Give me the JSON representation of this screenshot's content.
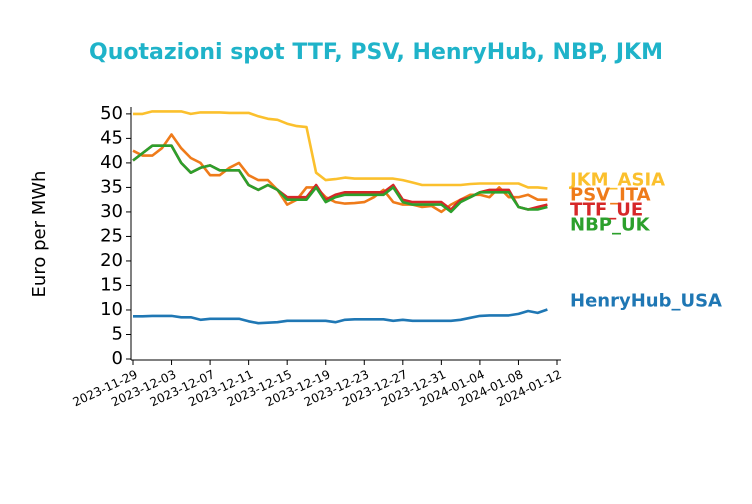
{
  "chart_data": {
    "type": "line",
    "title": "Quotazioni spot TTF, PSV, HenryHub, NBP, JKM",
    "y_label": "Euro per MWh",
    "x": [
      "2023-11-29",
      "2023-11-30",
      "2023-12-01",
      "2023-12-02",
      "2023-12-03",
      "2023-12-04",
      "2023-12-05",
      "2023-12-06",
      "2023-12-07",
      "2023-12-08",
      "2023-12-09",
      "2023-12-10",
      "2023-12-11",
      "2023-12-12",
      "2023-12-13",
      "2023-12-14",
      "2023-12-15",
      "2023-12-16",
      "2023-12-17",
      "2023-12-18",
      "2023-12-19",
      "2023-12-20",
      "2023-12-21",
      "2023-12-22",
      "2023-12-23",
      "2023-12-24",
      "2023-12-25",
      "2023-12-26",
      "2023-12-27",
      "2023-12-28",
      "2023-12-29",
      "2023-12-30",
      "2023-12-31",
      "2024-01-01",
      "2024-01-02",
      "2024-01-03",
      "2024-01-04",
      "2024-01-05",
      "2024-01-06",
      "2024-01-07",
      "2024-01-08",
      "2024-01-09",
      "2024-01-10",
      "2024-01-11"
    ],
    "xlim": [
      "2023-11-29",
      "2024-01-12"
    ],
    "xticks": [
      "2023-11-29",
      "2023-12-03",
      "2023-12-07",
      "2023-12-11",
      "2023-12-15",
      "2023-12-19",
      "2023-12-23",
      "2023-12-27",
      "2023-12-31",
      "2024-01-04",
      "2024-01-08",
      "2024-01-12"
    ],
    "ylim": [
      0,
      51.2
    ],
    "yticks": [
      0,
      5,
      10,
      15,
      20,
      25,
      30,
      35,
      40,
      45,
      50
    ],
    "series": [
      {
        "name": "JKM_ASIA",
        "color": "#fbc02d",
        "values": [
          50,
          50,
          50.5,
          50.5,
          50.5,
          50.5,
          50,
          50.3,
          50.3,
          50.3,
          50.2,
          50.2,
          50.2,
          49.5,
          49,
          48.8,
          48,
          47.5,
          47.3,
          38,
          36.5,
          36.7,
          37,
          36.8,
          36.8,
          36.8,
          36.8,
          36.8,
          36.5,
          36,
          35.5,
          35.5,
          35.5,
          35.5,
          35.5,
          35.7,
          35.8,
          35.8,
          35.8,
          35.8,
          35.8,
          35,
          35,
          34.8
        ]
      },
      {
        "name": "PSV_ITA",
        "color": "#ef7b1a",
        "values": [
          42.5,
          41.5,
          41.5,
          43,
          45.8,
          43,
          41,
          40,
          37.5,
          37.5,
          39,
          40,
          37.5,
          36.5,
          36.5,
          34.5,
          31.5,
          32.5,
          35,
          35,
          33,
          32,
          31.7,
          31.8,
          32,
          33,
          34.5,
          32,
          31.5,
          31.5,
          31,
          31.2,
          30,
          31.5,
          32.5,
          33.5,
          33.5,
          33,
          35,
          33,
          33,
          33.5,
          32.5,
          32.5
        ]
      },
      {
        "name": "TTF_UE",
        "color": "#d62728",
        "values": [
          40.5,
          42,
          43.5,
          43.5,
          43.5,
          40,
          38,
          39,
          39.5,
          38.5,
          38.5,
          38.5,
          35.5,
          34.5,
          35.5,
          34.5,
          33,
          33,
          33,
          35.5,
          32.5,
          33.5,
          34,
          34,
          34,
          34,
          34,
          35.5,
          32.5,
          32,
          32,
          32,
          32,
          30.5,
          32.5,
          33,
          34,
          34.5,
          34.5,
          34.5,
          31,
          30.5,
          31,
          31.5
        ]
      },
      {
        "name": "NBP_UK",
        "color": "#2ca02c",
        "values": [
          40.5,
          42,
          43.5,
          43.5,
          43.5,
          40,
          38,
          39,
          39.5,
          38.5,
          38.5,
          38.5,
          35.5,
          34.5,
          35.5,
          34.5,
          32.5,
          32.5,
          32.5,
          35,
          32,
          33,
          33.5,
          33.5,
          33.5,
          33.5,
          33.5,
          35,
          32,
          31.5,
          31.5,
          31.5,
          31.5,
          30,
          32,
          33,
          34,
          34,
          34,
          34,
          31,
          30.5,
          30.5,
          31
        ]
      },
      {
        "name": "HenryHub_USA",
        "color": "#1f77b4",
        "values": [
          8.7,
          8.7,
          8.8,
          8.8,
          8.8,
          8.5,
          8.5,
          8.0,
          8.2,
          8.2,
          8.2,
          8.2,
          7.7,
          7.3,
          7.4,
          7.5,
          7.8,
          7.8,
          7.8,
          7.8,
          7.8,
          7.5,
          8.0,
          8.1,
          8.1,
          8.1,
          8.1,
          7.8,
          8.0,
          7.8,
          7.8,
          7.8,
          7.8,
          7.8,
          8.0,
          8.4,
          8.8,
          8.9,
          8.9,
          8.9,
          9.2,
          9.8,
          9.4,
          10.1
        ]
      }
    ]
  }
}
